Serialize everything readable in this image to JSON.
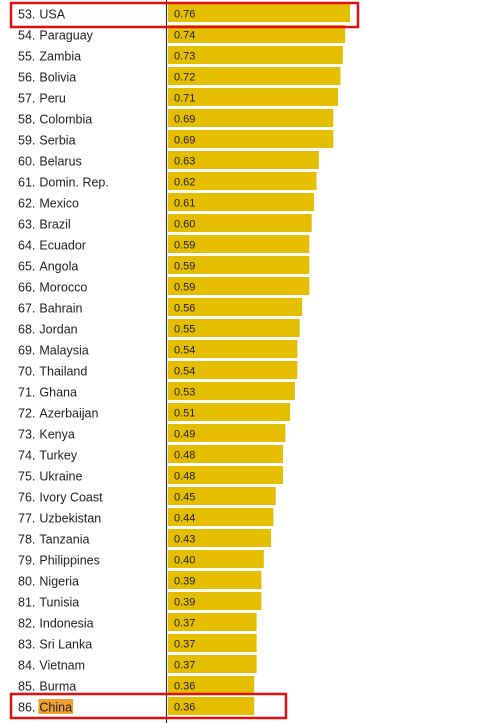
{
  "chart_data": {
    "type": "bar",
    "orientation": "horizontal",
    "rows": [
      {
        "rank": "53.",
        "country": "USA",
        "label": "0.76",
        "value": 0.76
      },
      {
        "rank": "54.",
        "country": "Paraguay",
        "label": "0.74",
        "value": 0.74
      },
      {
        "rank": "55.",
        "country": "Zambia",
        "label": "0.73",
        "value": 0.73
      },
      {
        "rank": "56.",
        "country": "Bolivia",
        "label": "0.72",
        "value": 0.72
      },
      {
        "rank": "57.",
        "country": "Peru",
        "label": "0.71",
        "value": 0.71
      },
      {
        "rank": "58.",
        "country": "Colombia",
        "label": "0.69",
        "value": 0.69
      },
      {
        "rank": "59.",
        "country": "Serbia",
        "label": "0.69",
        "value": 0.69
      },
      {
        "rank": "60.",
        "country": "Belarus",
        "label": "0.63",
        "value": 0.63
      },
      {
        "rank": "61.",
        "country": "Domin. Rep.",
        "label": "0.62",
        "value": 0.62
      },
      {
        "rank": "62.",
        "country": "Mexico",
        "label": "0.61",
        "value": 0.61
      },
      {
        "rank": "63.",
        "country": "Brazil",
        "label": "0.60",
        "value": 0.6
      },
      {
        "rank": "64.",
        "country": "Ecuador",
        "label": "0.59",
        "value": 0.59
      },
      {
        "rank": "65.",
        "country": "Angola",
        "label": "0.59",
        "value": 0.59
      },
      {
        "rank": "66.",
        "country": "Morocco",
        "label": "0.59",
        "value": 0.59
      },
      {
        "rank": "67.",
        "country": "Bahrain",
        "label": "0.56",
        "value": 0.56
      },
      {
        "rank": "68.",
        "country": "Jordan",
        "label": "0.55",
        "value": 0.55
      },
      {
        "rank": "69.",
        "country": "Malaysia",
        "label": "0.54",
        "value": 0.54
      },
      {
        "rank": "70.",
        "country": "Thailand",
        "label": "0.54",
        "value": 0.54
      },
      {
        "rank": "71.",
        "country": "Ghana",
        "label": "0.53",
        "value": 0.53
      },
      {
        "rank": "72.",
        "country": "Azerbaijan",
        "label": "0.51",
        "value": 0.51
      },
      {
        "rank": "73.",
        "country": "Kenya",
        "label": "0.49",
        "value": 0.49
      },
      {
        "rank": "74.",
        "country": "Turkey",
        "label": "0.48",
        "value": 0.48
      },
      {
        "rank": "75.",
        "country": "Ukraine",
        "label": "0.48",
        "value": 0.48
      },
      {
        "rank": "76.",
        "country": "Ivory Coast",
        "label": "0.45",
        "value": 0.45
      },
      {
        "rank": "77.",
        "country": "Uzbekistan",
        "label": "0.44",
        "value": 0.44
      },
      {
        "rank": "78.",
        "country": "Tanzania",
        "label": "0.43",
        "value": 0.43
      },
      {
        "rank": "79.",
        "country": "Philippines",
        "label": "0.40",
        "value": 0.4
      },
      {
        "rank": "80.",
        "country": "Nigeria",
        "label": "0.39",
        "value": 0.39
      },
      {
        "rank": "81.",
        "country": "Tunisia",
        "label": "0.39",
        "value": 0.39
      },
      {
        "rank": "82.",
        "country": "Indonesia",
        "label": "0.37",
        "value": 0.37
      },
      {
        "rank": "83.",
        "country": "Sri Lanka",
        "label": "0.37",
        "value": 0.37
      },
      {
        "rank": "84.",
        "country": "Vietnam",
        "label": "0.37",
        "value": 0.37
      },
      {
        "rank": "85.",
        "country": "Burma",
        "label": "0.36",
        "value": 0.36
      },
      {
        "rank": "86.",
        "country": "China",
        "label": "0.36",
        "value": 0.36
      }
    ],
    "highlighted_countries": [
      "USA",
      "China"
    ],
    "colors": {
      "bar": "#e6be00",
      "axis": "#333333",
      "highlight_box": "#e01010",
      "text_highlight": "#f0a030"
    }
  }
}
